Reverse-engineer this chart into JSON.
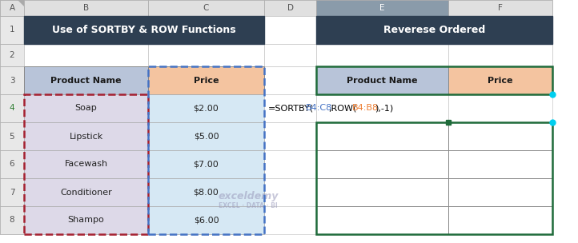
{
  "title_left": "Use of SORTBY & ROW Functions",
  "title_right": "Reverese Ordered",
  "title_bg": "#2E3F52",
  "title_fg": "#FFFFFF",
  "col_header_product_bg": "#B8C4D9",
  "col_header_price_bg": "#F4C4A0",
  "data_product_bg": "#DDD9E8",
  "data_price_bg": "#D6E8F4",
  "products": [
    "Soap",
    "Lipstick",
    "Facewash",
    "Conditioner",
    "Shampo"
  ],
  "prices": [
    "$2.00",
    "$5.00",
    "$7.00",
    "$8.00",
    "$6.00"
  ],
  "formula_color_default": "#000000",
  "formula_color_ref1": "#4472C4",
  "formula_color_ref2": "#ED7D31",
  "row_border_color_red": "#A52030",
  "row_border_color_blue": "#4472C4",
  "right_table_border": "#1F6B3A",
  "right_table_border2": "#1F6B3A",
  "watermark_color": "#9999BB",
  "col_headers": [
    "A",
    "B",
    "C",
    "D",
    "E",
    "F"
  ],
  "row_numbers": [
    "1",
    "2",
    "3",
    "4",
    "5",
    "6",
    "7",
    "8"
  ],
  "excel_bg": "#FFFFFF",
  "header_row_bg": "#E0E0E0",
  "col_e_header_bg": "#8A9BAA",
  "col_a_bg": "#E8E8E8"
}
